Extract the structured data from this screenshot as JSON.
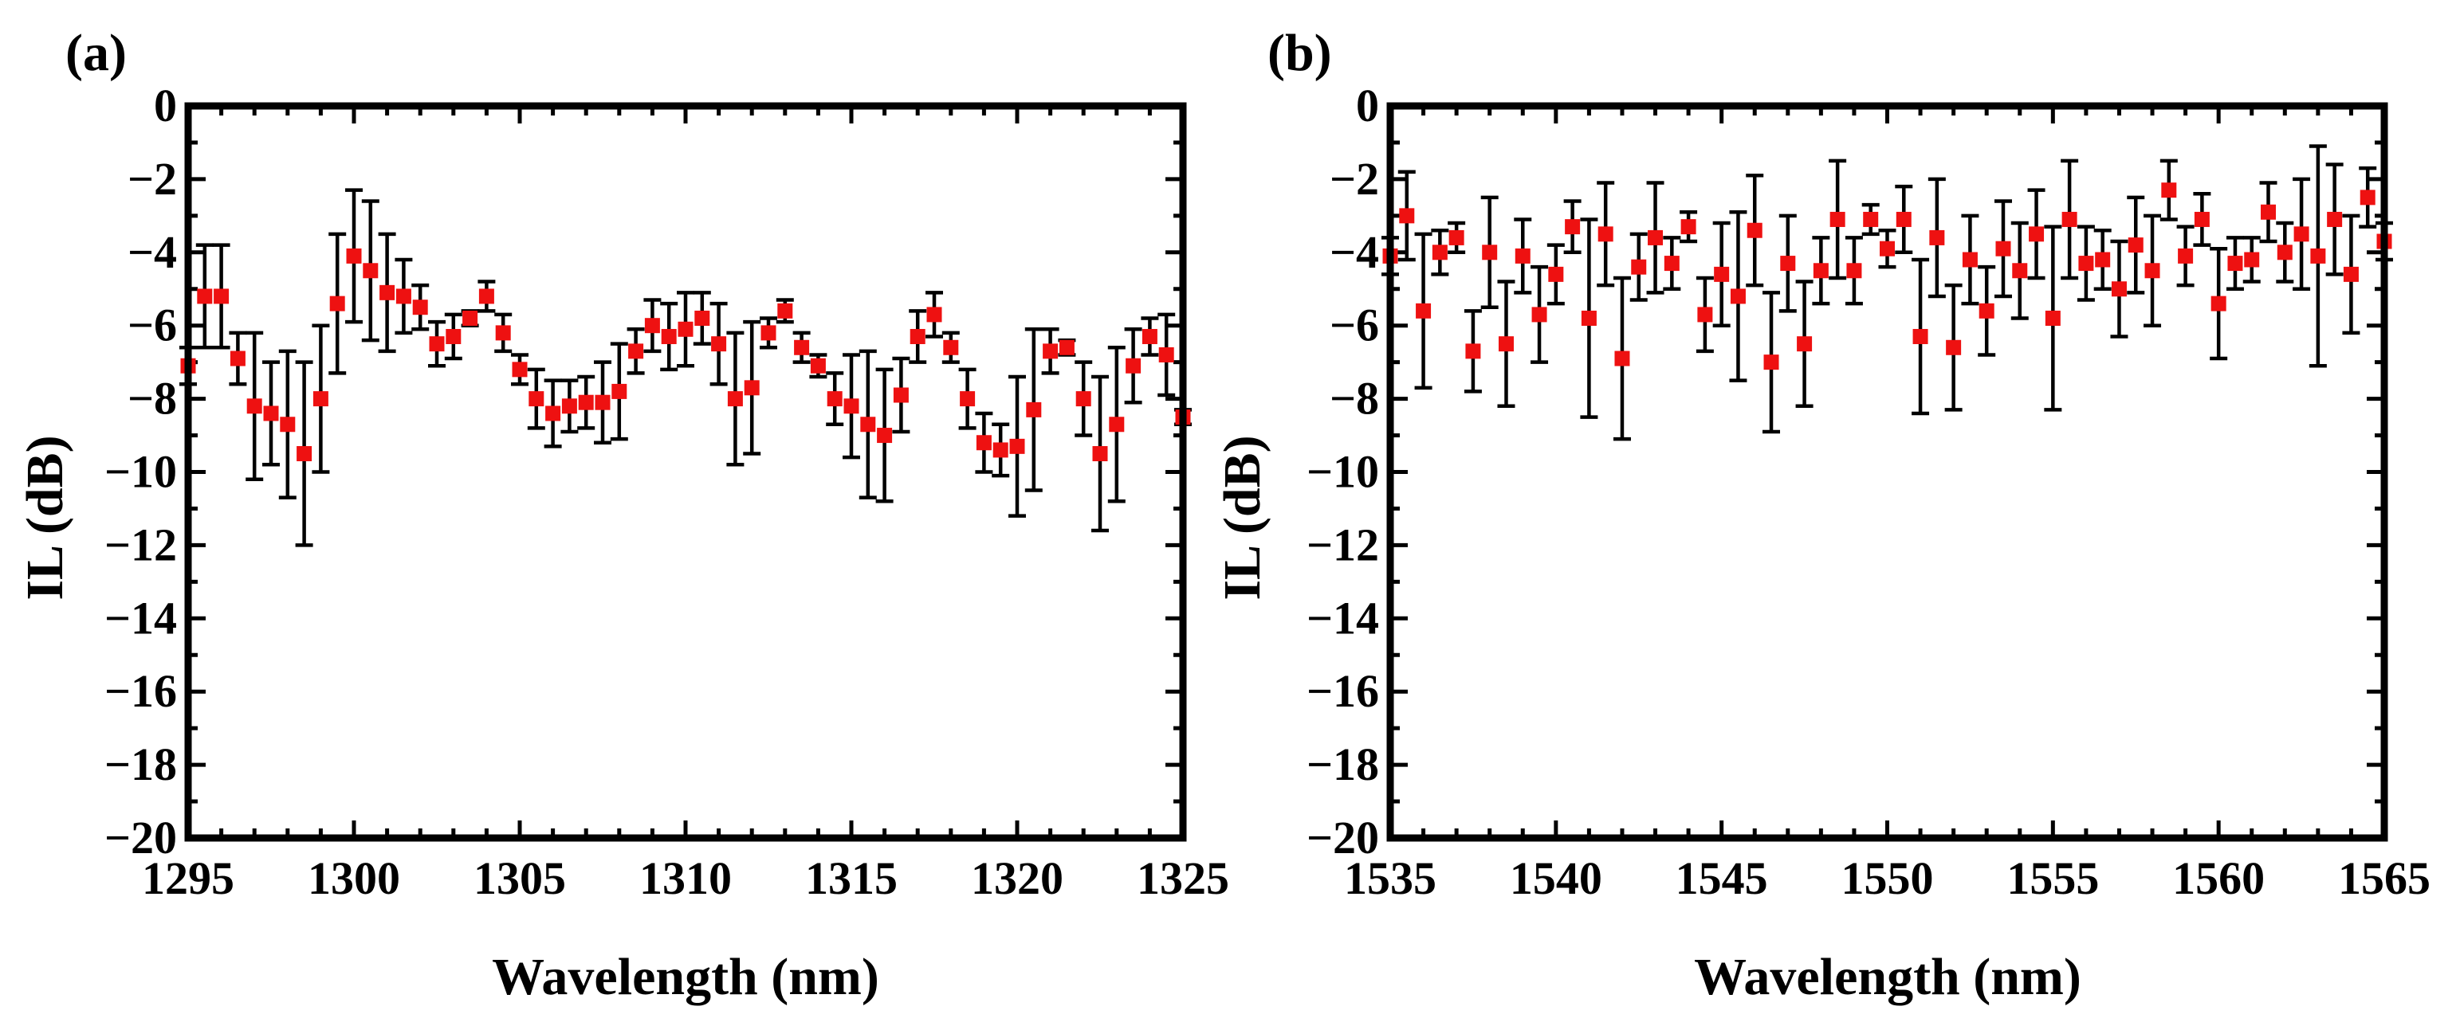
{
  "figure": {
    "marker_color": "#ee1111",
    "errorbar_color": "#000000",
    "axis_color": "#000000"
  },
  "chart_data": [
    {
      "type": "scatter",
      "panel_label": "(a)",
      "xlabel": "Wavelength (nm)",
      "ylabel": "IL (dB)",
      "xlim": [
        1295,
        1325
      ],
      "ylim": [
        -20,
        0
      ],
      "xticks": [
        1295,
        1300,
        1305,
        1310,
        1315,
        1320,
        1325
      ],
      "yticks": [
        0,
        -2,
        -4,
        -6,
        -8,
        -10,
        -12,
        -14,
        -16,
        -18,
        -20
      ],
      "xtick_labels": [
        "1295",
        "1300",
        "1305",
        "1310",
        "1315",
        "1320",
        "1325"
      ],
      "ytick_labels": [
        "0",
        "−2",
        "−4",
        "−6",
        "−8",
        "−10",
        "−12",
        "−14",
        "−16",
        "−18",
        "−20"
      ],
      "grid": false,
      "series": [
        {
          "name": "IL",
          "x": [
            1295.0,
            1295.5,
            1296.0,
            1296.5,
            1297.0,
            1297.5,
            1298.0,
            1298.5,
            1299.0,
            1299.5,
            1300.0,
            1300.5,
            1301.0,
            1301.5,
            1302.0,
            1302.5,
            1303.0,
            1303.5,
            1304.0,
            1304.5,
            1305.0,
            1305.5,
            1306.0,
            1306.5,
            1307.0,
            1307.5,
            1308.0,
            1308.5,
            1309.0,
            1309.5,
            1310.0,
            1310.5,
            1311.0,
            1311.5,
            1312.0,
            1312.5,
            1313.0,
            1313.5,
            1314.0,
            1314.5,
            1315.0,
            1315.5,
            1316.0,
            1316.5,
            1317.0,
            1317.5,
            1318.0,
            1318.5,
            1319.0,
            1319.5,
            1320.0,
            1320.5,
            1321.0,
            1321.5,
            1322.0,
            1322.5,
            1323.0,
            1323.5,
            1324.0,
            1324.5,
            1325.0
          ],
          "y": [
            -7.1,
            -5.2,
            -5.2,
            -6.9,
            -8.2,
            -8.4,
            -8.7,
            -9.5,
            -8.0,
            -5.4,
            -4.1,
            -4.5,
            -5.1,
            -5.2,
            -5.5,
            -6.5,
            -6.3,
            -5.8,
            -5.2,
            -6.2,
            -7.2,
            -8.0,
            -8.4,
            -8.2,
            -8.1,
            -8.1,
            -7.8,
            -6.7,
            -6.0,
            -6.3,
            -6.1,
            -5.8,
            -6.5,
            -8.0,
            -7.7,
            -6.2,
            -5.6,
            -6.6,
            -7.1,
            -8.0,
            -8.2,
            -8.7,
            -9.0,
            -7.9,
            -6.3,
            -5.7,
            -6.6,
            -8.0,
            -9.2,
            -9.4,
            -9.3,
            -8.3,
            -6.7,
            -6.6,
            -8.0,
            -9.5,
            -8.7,
            -7.1,
            -6.3,
            -6.8,
            -8.5
          ],
          "yerr": [
            0.5,
            1.4,
            1.4,
            0.7,
            2.0,
            1.4,
            2.0,
            2.5,
            2.0,
            1.9,
            1.8,
            1.9,
            1.6,
            1.0,
            0.6,
            0.6,
            0.6,
            0.2,
            0.4,
            0.5,
            0.4,
            0.8,
            0.9,
            0.7,
            0.7,
            1.1,
            1.3,
            0.6,
            0.7,
            0.9,
            1.0,
            0.7,
            1.1,
            1.8,
            1.8,
            0.4,
            0.3,
            0.4,
            0.3,
            0.7,
            1.4,
            2.0,
            1.8,
            1.0,
            0.7,
            0.6,
            0.4,
            0.8,
            0.8,
            0.7,
            1.9,
            2.2,
            0.6,
            0.2,
            1.0,
            2.1,
            2.1,
            1.0,
            0.5,
            1.1,
            0.2
          ]
        }
      ]
    },
    {
      "type": "scatter",
      "panel_label": "(b)",
      "xlabel": "Wavelength (nm)",
      "ylabel": "IL (dB)",
      "xlim": [
        1535,
        1565
      ],
      "ylim": [
        -20,
        0
      ],
      "xticks": [
        1535,
        1540,
        1545,
        1550,
        1555,
        1560,
        1565
      ],
      "yticks": [
        0,
        -2,
        -4,
        -6,
        -8,
        -10,
        -12,
        -14,
        -16,
        -18,
        -20
      ],
      "xtick_labels": [
        "1535",
        "1540",
        "1545",
        "1550",
        "1555",
        "1560",
        "1565"
      ],
      "ytick_labels": [
        "0",
        "−2",
        "−4",
        "−6",
        "−8",
        "−10",
        "−12",
        "−14",
        "−16",
        "−18",
        "−20"
      ],
      "grid": false,
      "series": [
        {
          "name": "IL",
          "x": [
            1535.0,
            1535.5,
            1536.0,
            1536.5,
            1537.0,
            1537.5,
            1538.0,
            1538.5,
            1539.0,
            1539.5,
            1540.0,
            1540.5,
            1541.0,
            1541.5,
            1542.0,
            1542.5,
            1543.0,
            1543.5,
            1544.0,
            1544.5,
            1545.0,
            1545.5,
            1546.0,
            1546.5,
            1547.0,
            1547.5,
            1548.0,
            1548.5,
            1549.0,
            1549.5,
            1550.0,
            1550.5,
            1551.0,
            1551.5,
            1552.0,
            1552.5,
            1553.0,
            1553.5,
            1554.0,
            1554.5,
            1555.0,
            1555.5,
            1556.0,
            1556.5,
            1557.0,
            1557.5,
            1558.0,
            1558.5,
            1559.0,
            1559.5,
            1560.0,
            1560.5,
            1561.0,
            1561.5,
            1562.0,
            1562.5,
            1563.0,
            1563.5,
            1564.0,
            1564.5,
            1565.0
          ],
          "y": [
            -4.1,
            -3.0,
            -5.6,
            -4.0,
            -3.6,
            -6.7,
            -4.0,
            -6.5,
            -4.1,
            -5.7,
            -4.6,
            -3.3,
            -5.8,
            -3.5,
            -6.9,
            -4.4,
            -3.6,
            -4.3,
            -3.3,
            -5.7,
            -4.6,
            -5.2,
            -3.4,
            -7.0,
            -4.3,
            -6.5,
            -4.5,
            -3.1,
            -4.5,
            -3.1,
            -3.9,
            -3.1,
            -6.3,
            -3.6,
            -6.6,
            -4.2,
            -5.6,
            -3.9,
            -4.5,
            -3.5,
            -5.8,
            -3.1,
            -4.3,
            -4.2,
            -5.0,
            -3.8,
            -4.5,
            -2.3,
            -4.1,
            -3.1,
            -5.4,
            -4.3,
            -4.2,
            -2.9,
            -4.0,
            -3.5,
            -4.1,
            -3.1,
            -4.6,
            -2.5,
            -3.7
          ],
          "yerr": [
            0.5,
            1.2,
            2.1,
            0.6,
            0.4,
            1.1,
            1.5,
            1.7,
            1.0,
            1.3,
            0.8,
            0.7,
            2.7,
            1.4,
            2.2,
            0.9,
            1.5,
            0.7,
            0.4,
            1.0,
            1.4,
            2.3,
            1.5,
            1.9,
            1.3,
            1.7,
            0.9,
            1.6,
            0.9,
            0.4,
            0.5,
            0.9,
            2.1,
            1.6,
            1.7,
            1.2,
            1.2,
            1.3,
            1.3,
            1.2,
            2.5,
            1.6,
            1.0,
            0.8,
            1.3,
            1.3,
            1.5,
            0.8,
            0.8,
            0.7,
            1.5,
            0.7,
            0.6,
            0.8,
            0.8,
            1.5,
            3.0,
            1.5,
            1.6,
            0.8,
            0.5
          ]
        }
      ]
    }
  ]
}
